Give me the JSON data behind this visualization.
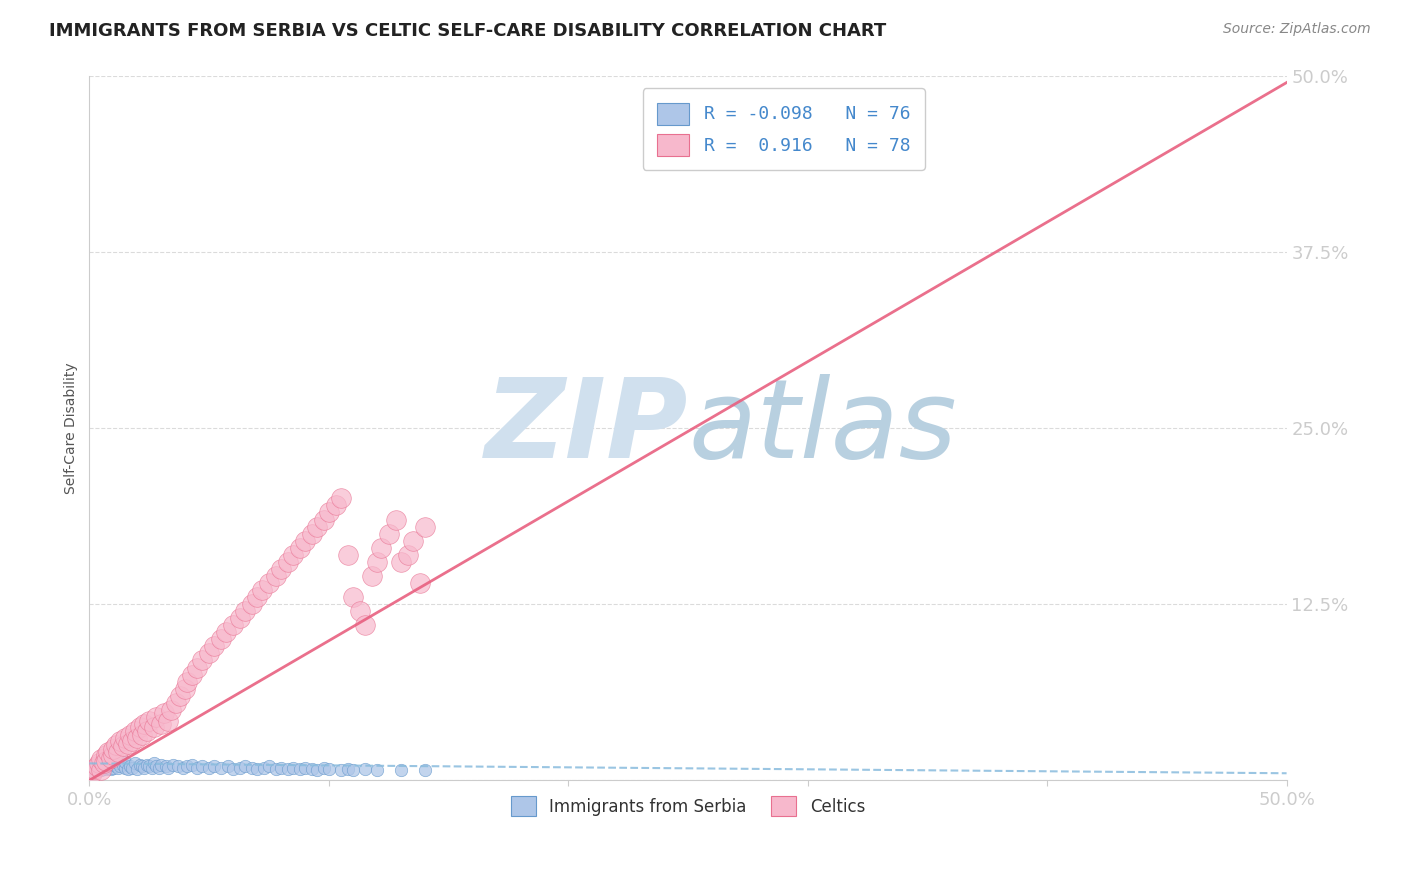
{
  "title": "IMMIGRANTS FROM SERBIA VS CELTIC SELF-CARE DISABILITY CORRELATION CHART",
  "source": "Source: ZipAtlas.com",
  "ylabel": "Self-Care Disability",
  "xlim": [
    0.0,
    0.5
  ],
  "ylim": [
    0.0,
    0.5
  ],
  "xticks": [
    0.0,
    0.1,
    0.2,
    0.3,
    0.4,
    0.5
  ],
  "xtick_labels": [
    "0.0%",
    "",
    "",
    "",
    "",
    "50.0%"
  ],
  "yticks": [
    0.0,
    0.125,
    0.25,
    0.375,
    0.5
  ],
  "ytick_labels": [
    "",
    "12.5%",
    "25.0%",
    "37.5%",
    "50.0%"
  ],
  "legend_entries": [
    {
      "label": "Immigrants from Serbia",
      "color": "#aec6e8",
      "edge": "#6699cc",
      "R": -0.098,
      "N": 76
    },
    {
      "label": "Celtics",
      "color": "#f7b8cc",
      "edge": "#e87090",
      "R": 0.916,
      "N": 78
    }
  ],
  "trendline1_color": "#88bbdd",
  "trendline2_color": "#e86080",
  "background_color": "#ffffff",
  "grid_color": "#cccccc",
  "title_color": "#222222",
  "tick_label_color": "#4488cc",
  "watermark_color": "#d0e0ee",
  "scatter1_x": [
    0.001,
    0.002,
    0.003,
    0.003,
    0.004,
    0.005,
    0.005,
    0.006,
    0.006,
    0.007,
    0.007,
    0.008,
    0.008,
    0.009,
    0.009,
    0.01,
    0.01,
    0.011,
    0.012,
    0.012,
    0.013,
    0.014,
    0.015,
    0.015,
    0.016,
    0.017,
    0.018,
    0.019,
    0.02,
    0.021,
    0.022,
    0.023,
    0.024,
    0.025,
    0.026,
    0.027,
    0.028,
    0.029,
    0.03,
    0.032,
    0.033,
    0.035,
    0.037,
    0.039,
    0.041,
    0.043,
    0.045,
    0.047,
    0.05,
    0.052,
    0.055,
    0.058,
    0.06,
    0.063,
    0.065,
    0.068,
    0.07,
    0.073,
    0.075,
    0.078,
    0.08,
    0.083,
    0.085,
    0.088,
    0.09,
    0.093,
    0.095,
    0.098,
    0.1,
    0.105,
    0.108,
    0.11,
    0.115,
    0.12,
    0.13,
    0.14
  ],
  "scatter1_y": [
    0.006,
    0.008,
    0.007,
    0.009,
    0.008,
    0.007,
    0.01,
    0.009,
    0.011,
    0.008,
    0.01,
    0.009,
    0.012,
    0.008,
    0.011,
    0.009,
    0.013,
    0.01,
    0.009,
    0.012,
    0.01,
    0.011,
    0.009,
    0.013,
    0.008,
    0.01,
    0.009,
    0.012,
    0.008,
    0.011,
    0.01,
    0.009,
    0.011,
    0.01,
    0.009,
    0.012,
    0.01,
    0.009,
    0.011,
    0.01,
    0.009,
    0.011,
    0.01,
    0.009,
    0.01,
    0.011,
    0.009,
    0.01,
    0.009,
    0.01,
    0.009,
    0.01,
    0.008,
    0.009,
    0.01,
    0.009,
    0.008,
    0.009,
    0.01,
    0.008,
    0.009,
    0.008,
    0.009,
    0.008,
    0.009,
    0.008,
    0.007,
    0.009,
    0.008,
    0.007,
    0.008,
    0.007,
    0.008,
    0.007,
    0.007,
    0.007
  ],
  "scatter2_x": [
    0.001,
    0.002,
    0.003,
    0.004,
    0.005,
    0.005,
    0.006,
    0.007,
    0.007,
    0.008,
    0.009,
    0.01,
    0.01,
    0.011,
    0.012,
    0.013,
    0.014,
    0.015,
    0.016,
    0.017,
    0.018,
    0.019,
    0.02,
    0.021,
    0.022,
    0.023,
    0.024,
    0.025,
    0.027,
    0.028,
    0.03,
    0.031,
    0.033,
    0.034,
    0.036,
    0.038,
    0.04,
    0.041,
    0.043,
    0.045,
    0.047,
    0.05,
    0.052,
    0.055,
    0.057,
    0.06,
    0.063,
    0.065,
    0.068,
    0.07,
    0.072,
    0.075,
    0.078,
    0.08,
    0.083,
    0.085,
    0.088,
    0.09,
    0.093,
    0.095,
    0.098,
    0.1,
    0.103,
    0.105,
    0.108,
    0.11,
    0.113,
    0.115,
    0.118,
    0.12,
    0.122,
    0.125,
    0.128,
    0.13,
    0.133,
    0.135,
    0.138,
    0.14
  ],
  "scatter2_y": [
    0.005,
    0.008,
    0.01,
    0.012,
    0.007,
    0.015,
    0.012,
    0.018,
    0.014,
    0.02,
    0.016,
    0.018,
    0.022,
    0.025,
    0.02,
    0.028,
    0.024,
    0.03,
    0.026,
    0.032,
    0.028,
    0.035,
    0.03,
    0.038,
    0.032,
    0.04,
    0.035,
    0.042,
    0.038,
    0.045,
    0.04,
    0.048,
    0.042,
    0.05,
    0.055,
    0.06,
    0.065,
    0.07,
    0.075,
    0.08,
    0.085,
    0.09,
    0.095,
    0.1,
    0.105,
    0.11,
    0.115,
    0.12,
    0.125,
    0.13,
    0.135,
    0.14,
    0.145,
    0.15,
    0.155,
    0.16,
    0.165,
    0.17,
    0.175,
    0.18,
    0.185,
    0.19,
    0.195,
    0.2,
    0.16,
    0.13,
    0.12,
    0.11,
    0.145,
    0.155,
    0.165,
    0.175,
    0.185,
    0.155,
    0.16,
    0.17,
    0.14,
    0.18
  ],
  "trendline1_x": [
    0.0,
    0.5
  ],
  "trendline1_y": [
    0.012,
    0.005
  ],
  "trendline2_x": [
    0.0,
    0.5
  ],
  "trendline2_y": [
    0.0,
    0.495
  ]
}
